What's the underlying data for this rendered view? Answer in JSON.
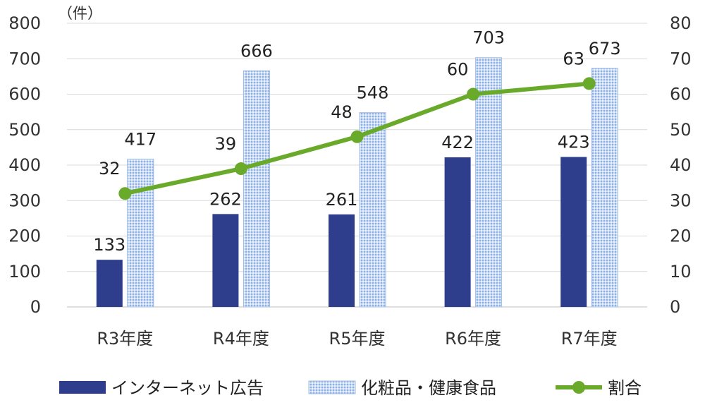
{
  "chart_data": {
    "type": "bar",
    "unit_label": "（件）",
    "categories": [
      "R3年度",
      "R4年度",
      "R5年度",
      "R6年度",
      "R7年度"
    ],
    "series": [
      {
        "name": "インターネット広告",
        "type": "bar",
        "axis": "left",
        "color": "#2e3d8c",
        "values": [
          133,
          262,
          261,
          422,
          423
        ]
      },
      {
        "name": "化粧品・健康食品",
        "type": "bar",
        "axis": "left",
        "color": "#a9c3ea",
        "pattern": "dotted",
        "values": [
          417,
          666,
          548,
          703,
          673
        ]
      },
      {
        "name": "割合",
        "type": "line",
        "axis": "right",
        "color": "#6aaa2a",
        "values": [
          32,
          39,
          48,
          60,
          63
        ]
      }
    ],
    "ylim_left": [
      0,
      800
    ],
    "ylim_right": [
      0,
      80
    ],
    "yticks_left": [
      "0",
      "100",
      "200",
      "300",
      "400",
      "500",
      "600",
      "700",
      "800"
    ],
    "yticks_right": [
      "0",
      "10",
      "20",
      "30",
      "40",
      "50",
      "60",
      "70",
      "80"
    ],
    "grid": true,
    "legend_position": "bottom"
  }
}
